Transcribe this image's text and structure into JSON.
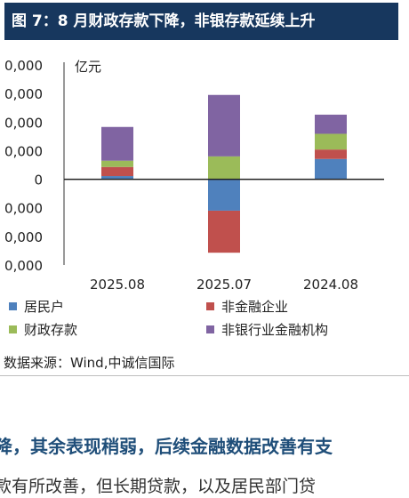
{
  "figure_title": "图 7：8 月财政存款下降，非银存款延续上升",
  "source": "数据来源：Wind,中诚信国际",
  "body_heading": "降，其余表现稍弱，后续金融数据改善有支",
  "body_text": "款有所改善，但长期贷款，以及居民部门贷",
  "colors": {
    "title_bg": "#17375e",
    "resident": "#4f81bd",
    "nonfinancial": "#c0504d",
    "fiscal": "#9bbb59",
    "nonbank": "#8064a2"
  },
  "chart_data": {
    "type": "bar",
    "stacked": true,
    "unit": "亿元",
    "categories": [
      "2025.08",
      "2025.07",
      "2024.08"
    ],
    "yticks": [
      "0,000",
      "0,000",
      "0,000",
      "0,000",
      "0",
      "0,000",
      "0,000",
      "0,000"
    ],
    "ylim": [
      -30000,
      40000
    ],
    "series": [
      {
        "name": "居民户",
        "color": "#4f81bd",
        "values": [
          1100,
          -11000,
          7100
        ]
      },
      {
        "name": "非金融企业",
        "color": "#c0504d",
        "values": [
          3200,
          -14700,
          3300
        ]
      },
      {
        "name": "财政存款",
        "color": "#9bbb59",
        "values": [
          2200,
          8000,
          5500
        ]
      },
      {
        "name": "非银行业金融机构",
        "color": "#8064a2",
        "values": [
          11800,
          21500,
          6700
        ]
      }
    ],
    "legend_position": "bottom",
    "grid": false
  }
}
